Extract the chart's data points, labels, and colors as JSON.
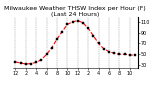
{
  "title": "Milwaukee Weather THSW Index per Hour (F) (Last 24 Hours)",
  "background_color": "#ffffff",
  "plot_bg_color": "#ffffff",
  "grid_color": "#888888",
  "line_color": "#ff0000",
  "marker_color": "#000000",
  "marker_size": 1.8,
  "line_width": 0.8,
  "line_style": "--",
  "hours": [
    0,
    1,
    2,
    3,
    4,
    5,
    6,
    7,
    8,
    9,
    10,
    11,
    12,
    13,
    14,
    15,
    16,
    17,
    18,
    19,
    20,
    21,
    22,
    23
  ],
  "values": [
    36,
    34,
    32,
    33,
    35,
    40,
    50,
    62,
    78,
    92,
    105,
    110,
    112,
    108,
    98,
    84,
    70,
    60,
    55,
    52,
    50,
    50,
    49,
    48
  ],
  "ylim": [
    25,
    118
  ],
  "yticks": [
    30,
    50,
    70,
    90,
    110
  ],
  "ytick_labels": [
    "30",
    "50",
    "70",
    "90",
    "110"
  ],
  "xticks": [
    0,
    2,
    4,
    6,
    8,
    10,
    12,
    14,
    16,
    18,
    20,
    22
  ],
  "xtick_labels": [
    "12",
    "2",
    "4",
    "6",
    "8",
    "10",
    "12",
    "2",
    "4",
    "6",
    "8",
    "10"
  ],
  "title_fontsize": 4.5,
  "tick_fontsize": 3.5,
  "grid_xticks": [
    0,
    2,
    4,
    6,
    8,
    10,
    12,
    14,
    16,
    18,
    20,
    22
  ]
}
